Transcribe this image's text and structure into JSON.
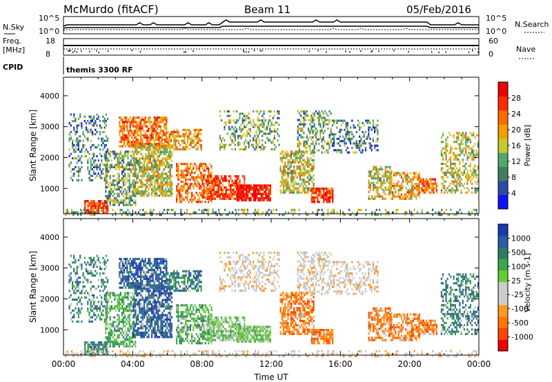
{
  "header": {
    "station": "McMurdo (fitACF)",
    "beam": "Beam 11",
    "date": "05/Feb/2016"
  },
  "side_labels": {
    "nsky": "N.Sky",
    "freq_line1": "Freq.",
    "freq_line2": "[MHz]",
    "cpid": "CPID",
    "nsearch": "N.Search",
    "nave": "Nave"
  },
  "summary_panel": {
    "nsky_ticks": [
      "10^5",
      "10^0"
    ],
    "nsearch_ticks": [
      "10^5",
      "10^0"
    ],
    "freq_ticks": [
      "18",
      "8"
    ],
    "nave_ticks": [
      "60",
      "0"
    ],
    "cpid_text": "themis 3300 RF"
  },
  "colors": {
    "power_scale": [
      "#1010ff",
      "#2a4aa8",
      "#3f7f5f",
      "#52a86a",
      "#c8c830",
      "#f0a000",
      "#ff6a00",
      "#ff2a00",
      "#ee0000"
    ],
    "velocity_scale": [
      "#ee0000",
      "#ff4400",
      "#ff7700",
      "#ff9922",
      "#cccccc",
      "#cccccc",
      "#66cc33",
      "#3aa84a",
      "#2f7a62",
      "#2a5aa8",
      "#1a3ab0"
    ],
    "ground_scatter": "#bbbbbb"
  },
  "chart_data": [
    {
      "type": "heatmap",
      "name": "power",
      "ylabel": "Slant Range [km]",
      "xlim": [
        "00:00",
        "24:00"
      ],
      "ylim": [
        180,
        4600
      ],
      "yticks": [
        1000,
        2000,
        3000,
        4000
      ],
      "colorbar_label": "Power [dB]",
      "colorbar_ticks": [
        4,
        8,
        12,
        16,
        20,
        24,
        28
      ],
      "colorbar_range": [
        0,
        30
      ]
    },
    {
      "type": "heatmap",
      "name": "velocity",
      "ylabel": "Slant Range [km]",
      "xlabel": "Time UT",
      "xticks": [
        "00:00",
        "04:00",
        "08:00",
        "12:00",
        "16:00",
        "20:00",
        "00:00"
      ],
      "xlim": [
        "00:00",
        "24:00"
      ],
      "ylim": [
        180,
        4600
      ],
      "yticks": [
        1000,
        2000,
        3000,
        4000
      ],
      "colorbar_label": "Velocity [m s-1]",
      "colorbar_ticks": [
        "1000",
        "500",
        "100",
        "25",
        "-25",
        "-100",
        "-500",
        "-1000"
      ]
    }
  ]
}
